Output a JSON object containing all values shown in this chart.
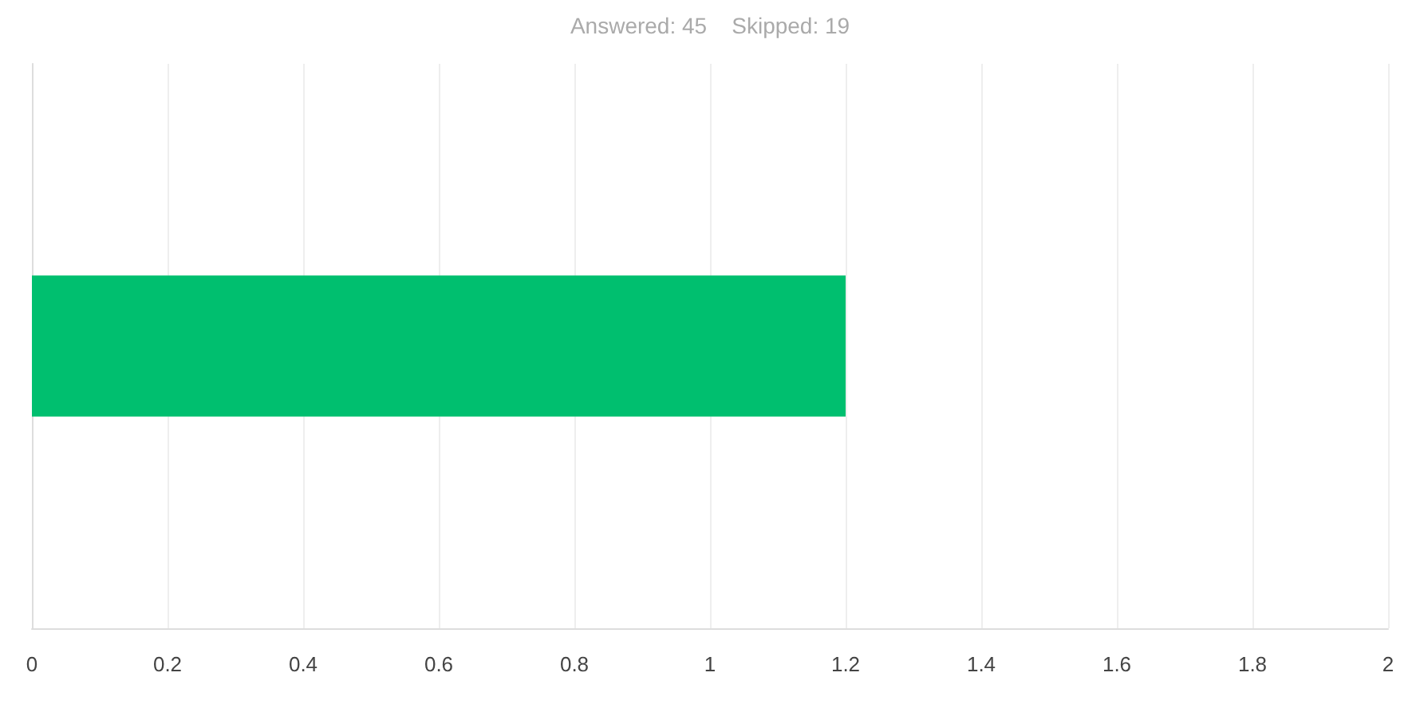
{
  "chart_data": {
    "type": "bar",
    "orientation": "horizontal",
    "title": "Answered: 45    Skipped: 19",
    "categories": [
      null
    ],
    "values": [
      1.2
    ],
    "color": "#00bf6f",
    "xlim": [
      0,
      2
    ],
    "xticks": [
      0,
      0.2,
      0.4,
      0.6,
      0.8,
      1,
      1.2,
      1.4,
      1.6,
      1.8,
      2
    ],
    "grid": "x"
  }
}
